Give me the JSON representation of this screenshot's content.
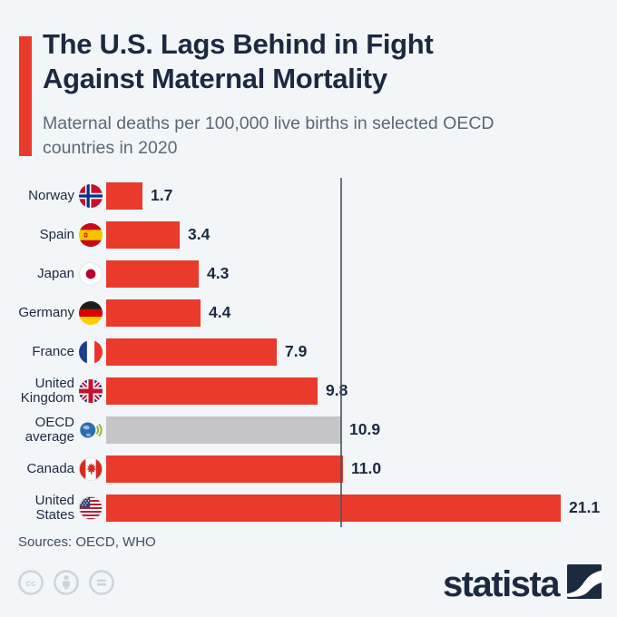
{
  "header": {
    "title": "The U.S. Lags Behind in Fight Against Maternal Mortality",
    "title_lines": [
      "The U.S. Lags Behind in Fight",
      "Against Maternal Mortality"
    ],
    "subtitle": "Maternal deaths per 100,000 live births in selected OECD countries in 2020"
  },
  "chart_data": {
    "type": "bar",
    "orientation": "horizontal",
    "title": "The U.S. Lags Behind in Fight Against Maternal Mortality",
    "subtitle": "Maternal deaths per 100,000 live births in selected OECD countries in 2020",
    "categories": [
      "Norway",
      "Spain",
      "Japan",
      "Germany",
      "France",
      "United Kingdom",
      "OECD average",
      "Canada",
      "United States"
    ],
    "values": [
      1.7,
      3.4,
      4.3,
      4.4,
      7.9,
      9.8,
      10.9,
      11.0,
      21.1
    ],
    "value_labels": [
      "1.7",
      "3.4",
      "4.3",
      "4.4",
      "7.9",
      "9.8",
      "10.9",
      "11.0",
      "21.1"
    ],
    "xlim": [
      0,
      21.1
    ],
    "grid": "off",
    "legend": "none",
    "reference_line": {
      "value": 10.9,
      "meaning": "OECD average"
    },
    "highlighted_category": "OECD average"
  },
  "rows": [
    {
      "label": "Norway",
      "value": 1.7,
      "value_label": "1.7",
      "bar_color": "#ea3a2b",
      "flag": "norway-flag-icon"
    },
    {
      "label": "Spain",
      "value": 3.4,
      "value_label": "3.4",
      "bar_color": "#ea3a2b",
      "flag": "spain-flag-icon"
    },
    {
      "label": "Japan",
      "value": 4.3,
      "value_label": "4.3",
      "bar_color": "#ea3a2b",
      "flag": "japan-flag-icon"
    },
    {
      "label": "Germany",
      "value": 4.4,
      "value_label": "4.4",
      "bar_color": "#ea3a2b",
      "flag": "germany-flag-icon"
    },
    {
      "label": "France",
      "value": 7.9,
      "value_label": "7.9",
      "bar_color": "#ea3a2b",
      "flag": "france-flag-icon"
    },
    {
      "label": "United Kingdom",
      "value": 9.8,
      "value_label": "9.8",
      "bar_color": "#ea3a2b",
      "flag": "uk-flag-icon"
    },
    {
      "label": "OECD average",
      "value": 10.9,
      "value_label": "10.9",
      "bar_color": "#c5c5c7",
      "flag": "oecd-logo-icon"
    },
    {
      "label": "Canada",
      "value": 11.0,
      "value_label": "11.0",
      "bar_color": "#ea3a2b",
      "flag": "canada-flag-icon"
    },
    {
      "label": "United States",
      "value": 21.1,
      "value_label": "21.1",
      "bar_color": "#ea3a2b",
      "flag": "us-flag-icon"
    }
  ],
  "footer": {
    "sources": "Sources: OECD, WHO",
    "brand": "statista",
    "license_icons": [
      "cc-license-icon",
      "cc-attribution-icon",
      "cc-no-derivatives-icon"
    ]
  },
  "colors": {
    "background": "#f3f6f9",
    "bar_red": "#ea3a2b",
    "bar_gray": "#c5c5c7",
    "text_navy": "#1b2a41",
    "subtitle_gray": "#5a6876",
    "reference_line": "#47525e",
    "license_gray": "#cbd4de"
  }
}
